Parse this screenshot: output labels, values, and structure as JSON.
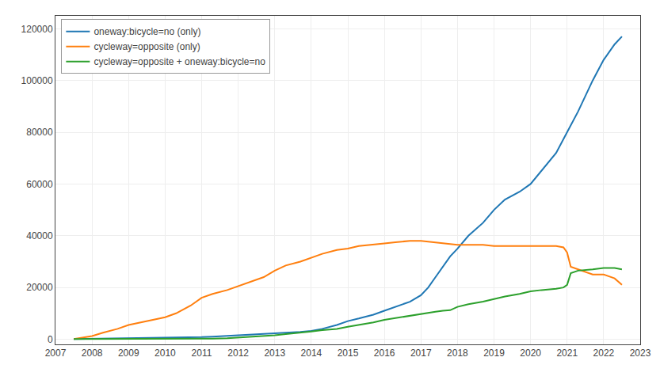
{
  "chart_data": {
    "type": "line",
    "xlim": [
      2007,
      2023
    ],
    "ylim": [
      -2000,
      125000
    ],
    "xticks": [
      2007,
      2008,
      2009,
      2010,
      2011,
      2012,
      2013,
      2014,
      2015,
      2016,
      2017,
      2018,
      2019,
      2020,
      2021,
      2022,
      2023
    ],
    "yticks": [
      0,
      20000,
      40000,
      60000,
      80000,
      100000,
      120000
    ],
    "grid": true,
    "legend": "upper left",
    "series": [
      {
        "name": "oneway:bicycle=no (only)",
        "color": "#1f77b4",
        "x": [
          2007.5,
          2008.0,
          2008.3,
          2008.7,
          2009.0,
          2009.5,
          2010.0,
          2010.3,
          2010.7,
          2011.0,
          2011.3,
          2011.7,
          2012.0,
          2012.3,
          2012.7,
          2013.0,
          2013.3,
          2013.7,
          2014.0,
          2014.3,
          2014.7,
          2015.0,
          2015.3,
          2015.7,
          2016.0,
          2016.3,
          2016.7,
          2017.0,
          2017.2,
          2017.4,
          2017.6,
          2017.8,
          2018.0,
          2018.3,
          2018.7,
          2019.0,
          2019.3,
          2019.7,
          2020.0,
          2020.3,
          2020.7,
          2021.0,
          2021.3,
          2021.7,
          2022.0,
          2022.3,
          2022.5
        ],
        "values": [
          100,
          200,
          250,
          300,
          350,
          400,
          500,
          550,
          650,
          800,
          1000,
          1300,
          1600,
          1800,
          2000,
          2200,
          2500,
          2800,
          3200,
          4000,
          5500,
          7000,
          8000,
          9500,
          11000,
          12500,
          14500,
          17000,
          20000,
          24000,
          28000,
          32000,
          35000,
          40000,
          45000,
          50000,
          54000,
          57000,
          60000,
          65000,
          72000,
          80000,
          88000,
          100000,
          108000,
          114000,
          117000
        ]
      },
      {
        "name": "cycleway=opposite (only)",
        "color": "#ff7f0e",
        "x": [
          2007.5,
          2008.0,
          2008.3,
          2008.7,
          2009.0,
          2009.5,
          2010.0,
          2010.3,
          2010.7,
          2011.0,
          2011.3,
          2011.7,
          2012.0,
          2012.3,
          2012.7,
          2013.0,
          2013.3,
          2013.7,
          2014.0,
          2014.3,
          2014.7,
          2015.0,
          2015.3,
          2015.7,
          2016.0,
          2016.3,
          2016.7,
          2017.0,
          2017.3,
          2017.7,
          2018.0,
          2018.3,
          2018.7,
          2019.0,
          2019.3,
          2019.7,
          2020.0,
          2020.3,
          2020.7,
          2020.9,
          2021.0,
          2021.1,
          2021.3,
          2021.7,
          2022.0,
          2022.3,
          2022.5
        ],
        "values": [
          100,
          1200,
          2500,
          4000,
          5500,
          7000,
          8500,
          10000,
          13000,
          16000,
          17500,
          19000,
          20500,
          22000,
          24000,
          26500,
          28500,
          30000,
          31500,
          33000,
          34500,
          35000,
          36000,
          36500,
          37000,
          37500,
          38000,
          38000,
          37500,
          37000,
          36500,
          36500,
          36500,
          36000,
          36000,
          36000,
          36000,
          36000,
          36000,
          35500,
          33500,
          28000,
          27000,
          25000,
          25000,
          23500,
          21000
        ]
      },
      {
        "name": "cycleway=opposite + oneway:bicycle=no",
        "color": "#2ca02c",
        "x": [
          2007.5,
          2008.0,
          2008.3,
          2008.7,
          2009.0,
          2009.5,
          2010.0,
          2010.3,
          2010.7,
          2011.0,
          2011.3,
          2011.7,
          2012.0,
          2012.3,
          2012.7,
          2013.0,
          2013.3,
          2013.7,
          2014.0,
          2014.3,
          2014.7,
          2015.0,
          2015.3,
          2015.7,
          2016.0,
          2016.3,
          2016.7,
          2017.0,
          2017.2,
          2017.4,
          2017.6,
          2017.8,
          2018.0,
          2018.3,
          2018.7,
          2019.0,
          2019.3,
          2019.7,
          2020.0,
          2020.3,
          2020.7,
          2020.9,
          2021.0,
          2021.1,
          2021.3,
          2021.7,
          2022.0,
          2022.3,
          2022.5
        ],
        "values": [
          50,
          50,
          50,
          50,
          50,
          50,
          100,
          100,
          100,
          100,
          200,
          400,
          600,
          900,
          1200,
          1500,
          2000,
          2500,
          3000,
          3500,
          4000,
          4800,
          5500,
          6500,
          7500,
          8200,
          9000,
          9800,
          10200,
          10600,
          11000,
          11200,
          12500,
          13500,
          14500,
          15500,
          16500,
          17500,
          18500,
          19000,
          19500,
          20000,
          21000,
          25500,
          26500,
          27000,
          27500,
          27500,
          27000
        ]
      }
    ]
  }
}
